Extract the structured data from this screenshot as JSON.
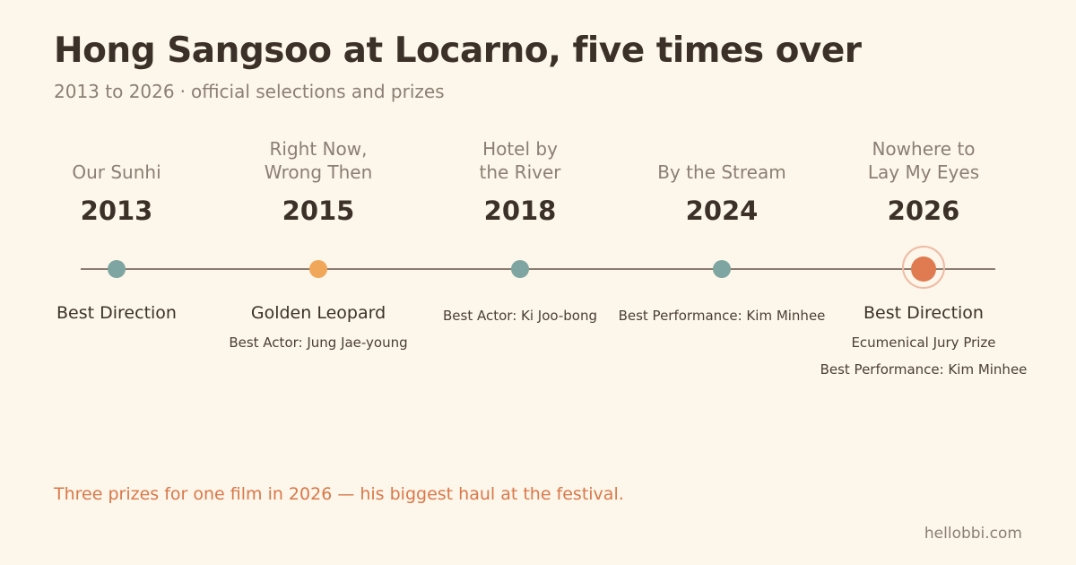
{
  "header": {
    "title": "Hong Sangsoo at Locarno, five times over",
    "subtitle_range": "2013 to 2026",
    "subtitle_separator": "·",
    "subtitle_text": "official selections and prizes"
  },
  "timeline": [
    {
      "film_line1": "",
      "film_line2": "Our Sunhi",
      "year": "2013",
      "dot": "teal",
      "prize_main": "Best Direction",
      "prizes_small": []
    },
    {
      "film_line1": "Right Now,",
      "film_line2": "Wrong Then",
      "year": "2015",
      "dot": "orange",
      "prize_main": "Golden Leopard",
      "prizes_small": [
        "Best Actor: Jung Jae-young"
      ]
    },
    {
      "film_line1": "Hotel by",
      "film_line2": "the River",
      "year": "2018",
      "dot": "teal",
      "prize_main": "",
      "prizes_small": [
        "Best Actor: Ki Joo-bong"
      ]
    },
    {
      "film_line1": "",
      "film_line2": "By the Stream",
      "year": "2024",
      "dot": "teal",
      "prize_main": "",
      "prizes_small": [
        "Best Performance: Kim Minhee"
      ]
    },
    {
      "film_line1": "Nowhere to",
      "film_line2": "Lay My Eyes",
      "year": "2026",
      "dot": "highlight",
      "prize_main": "Best Direction",
      "prizes_small": [
        "Ecumenical Jury Prize",
        "Best Performance: Kim Minhee"
      ]
    }
  ],
  "colors": {
    "background": "#fdf6ea",
    "teal_dot": "#7ea5a1",
    "orange_dot": "#f0a75a",
    "highlight_dot": "#e07a50",
    "accent_text": "#d9784a"
  },
  "footnote": "Three prizes for one film in 2026 — his biggest haul at the festival.",
  "credit": "hellobbi.com"
}
